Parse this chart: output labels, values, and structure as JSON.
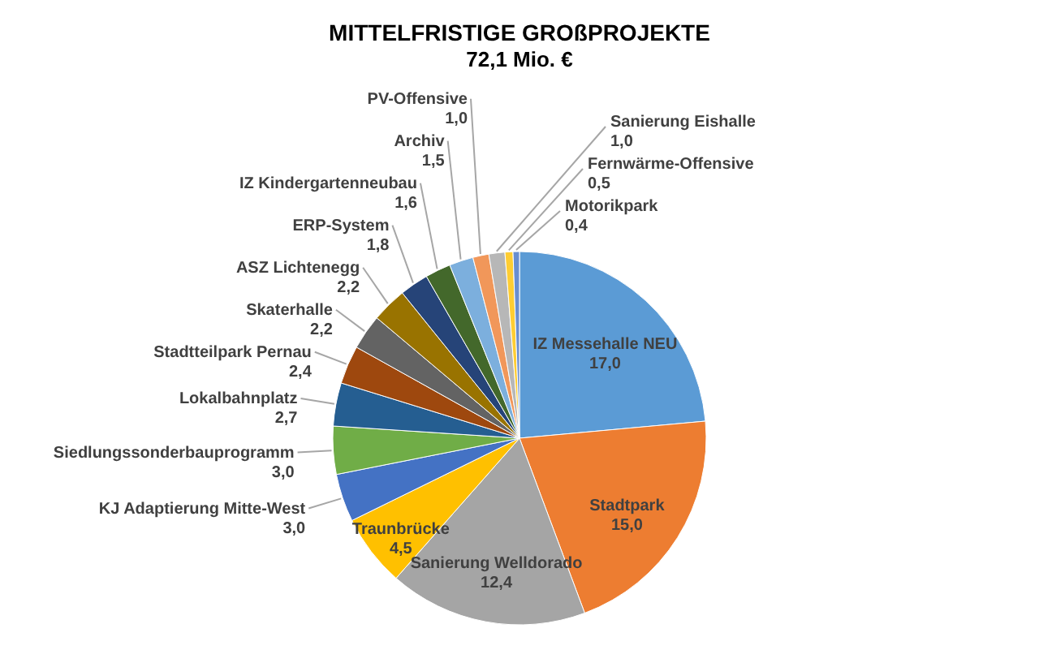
{
  "chart_data": {
    "type": "pie",
    "title": "MITTELFRISTIGE GROßPROJEKTE",
    "subtitle": "72,1 Mio. €",
    "categories": [
      "IZ Messehalle NEU",
      "Stadtpark",
      "Sanierung Welldorado",
      "Traunbrücke",
      "KJ Adaptierung Mitte-West",
      "Siedlungssonderbauprogramm",
      "Lokalbahnplatz",
      "Stadtteilpark Pernau",
      "Skaterhalle",
      "ASZ Lichtenegg",
      "ERP-System",
      "IZ Kindergartenneubau",
      "Archiv",
      "PV-Offensive",
      "Sanierung Eishalle",
      "Fernwärme-Offensive",
      "Motorikpark"
    ],
    "values": [
      17.0,
      15.0,
      12.4,
      4.5,
      3.0,
      3.0,
      2.7,
      2.4,
      2.2,
      2.2,
      1.8,
      1.6,
      1.5,
      1.0,
      1.0,
      0.5,
      0.4
    ],
    "value_labels": [
      "17,0",
      "15,0",
      "12,4",
      "4,5",
      "3,0",
      "3,0",
      "2,7",
      "2,4",
      "2,2",
      "2,2",
      "1,8",
      "1,6",
      "1,5",
      "1,0",
      "1,0",
      "0,5",
      "0,4"
    ],
    "colors": [
      "#5b9bd5",
      "#ed7d31",
      "#a5a5a5",
      "#ffc000",
      "#4472c4",
      "#70ad47",
      "#255e91",
      "#9e480e",
      "#636363",
      "#997300",
      "#264478",
      "#43682b",
      "#7cafdd",
      "#f1975a",
      "#b7b7b7",
      "#ffcd33",
      "#698ed0"
    ]
  }
}
